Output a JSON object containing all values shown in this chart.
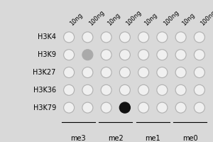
{
  "rows": [
    "H3K4",
    "H3K9",
    "H3K27",
    "H3K36",
    "H3K79"
  ],
  "col_groups": [
    "me3",
    "me2",
    "me1",
    "me0"
  ],
  "col_labels": [
    "10ng",
    "100ng",
    "10ng",
    "100ng",
    "10ng",
    "100ng",
    "10ng",
    "100ng"
  ],
  "background_color": "#d9d9d9",
  "circle_edge_color": "#b0b0b0",
  "circle_face_color": "#f0f0f0",
  "filled_dot": {
    "row": 4,
    "col": 3,
    "color": "#111111"
  },
  "gray_dot": {
    "row": 1,
    "col": 1,
    "color": "#aaaaaa"
  },
  "row_label_fontsize": 7.0,
  "col_label_fontsize": 6.0,
  "group_label_fontsize": 7.0
}
